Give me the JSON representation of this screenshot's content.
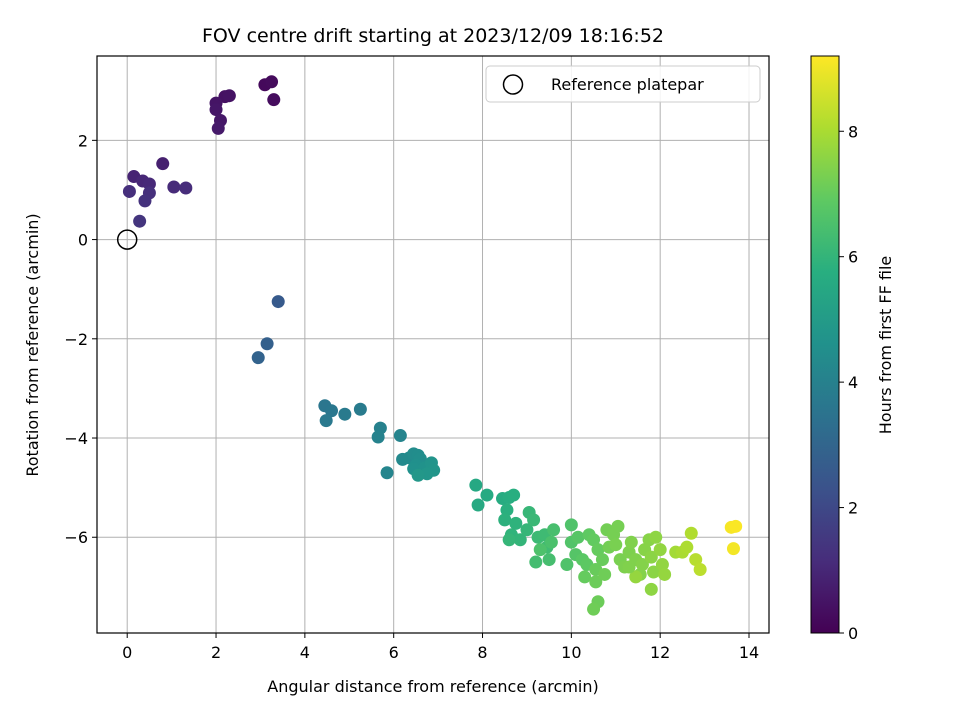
{
  "chart_data": {
    "type": "scatter",
    "title": "FOV centre drift starting at 2023/12/09 18:16:52",
    "xlabel": "Angular distance from reference (arcmin)",
    "ylabel": "Rotation from reference (arcmin)",
    "xlim": [
      -0.68,
      14.45
    ],
    "ylim": [
      -7.93,
      3.7
    ],
    "x_ticks": [
      0,
      2,
      4,
      6,
      8,
      10,
      12,
      14
    ],
    "y_ticks": [
      2,
      0,
      -2,
      -4,
      -6
    ],
    "grid": true,
    "legend": {
      "position": "top-right",
      "entries": [
        {
          "label": "Reference platepar",
          "marker": "open-circle"
        }
      ]
    },
    "reference_point": {
      "x": 0,
      "y": 0
    },
    "colorbar": {
      "label": "Hours from first FF file",
      "colormap": "viridis",
      "range": [
        0,
        9.2
      ],
      "ticks": [
        0,
        2,
        4,
        6,
        8
      ]
    },
    "points": [
      [
        3.1,
        3.12,
        0.2
      ],
      [
        3.25,
        3.18,
        0.25
      ],
      [
        3.3,
        2.82,
        0.3
      ],
      [
        2.2,
        2.88,
        0.4
      ],
      [
        2.3,
        2.9,
        0.45
      ],
      [
        2.0,
        2.75,
        0.5
      ],
      [
        2.0,
        2.62,
        0.55
      ],
      [
        2.1,
        2.4,
        0.6
      ],
      [
        2.05,
        2.24,
        0.65
      ],
      [
        0.8,
        1.53,
        0.8
      ],
      [
        0.15,
        1.27,
        0.9
      ],
      [
        0.35,
        1.18,
        1.0
      ],
      [
        0.5,
        1.12,
        1.05
      ],
      [
        1.05,
        1.06,
        1.1
      ],
      [
        1.32,
        1.04,
        1.15
      ],
      [
        0.05,
        0.97,
        1.2
      ],
      [
        0.5,
        0.94,
        1.25
      ],
      [
        0.4,
        0.78,
        1.3
      ],
      [
        0.28,
        0.37,
        1.4
      ],
      [
        3.4,
        -1.25,
        2.6
      ],
      [
        3.15,
        -2.1,
        2.8
      ],
      [
        2.95,
        -2.38,
        2.9
      ],
      [
        4.45,
        -3.35,
        3.6
      ],
      [
        4.6,
        -3.45,
        3.65
      ],
      [
        4.48,
        -3.65,
        3.7
      ],
      [
        4.9,
        -3.52,
        3.75
      ],
      [
        5.25,
        -3.42,
        3.8
      ],
      [
        5.7,
        -3.8,
        4.0
      ],
      [
        5.65,
        -3.98,
        4.05
      ],
      [
        6.15,
        -3.95,
        4.1
      ],
      [
        5.85,
        -4.7,
        4.15
      ],
      [
        6.2,
        -4.43,
        4.3
      ],
      [
        6.35,
        -4.4,
        4.35
      ],
      [
        6.45,
        -4.32,
        4.4
      ],
      [
        6.55,
        -4.35,
        4.45
      ],
      [
        6.6,
        -4.42,
        4.5
      ],
      [
        6.5,
        -4.55,
        4.55
      ],
      [
        6.45,
        -4.62,
        4.6
      ],
      [
        6.7,
        -4.6,
        4.65
      ],
      [
        6.85,
        -4.5,
        4.7
      ],
      [
        6.9,
        -4.65,
        4.75
      ],
      [
        6.75,
        -4.72,
        4.8
      ],
      [
        6.55,
        -4.75,
        4.85
      ],
      [
        7.85,
        -4.95,
        5.5
      ],
      [
        7.9,
        -5.35,
        5.55
      ],
      [
        8.1,
        -5.15,
        5.6
      ],
      [
        8.45,
        -5.22,
        5.65
      ],
      [
        8.6,
        -5.2,
        5.7
      ],
      [
        8.7,
        -5.15,
        5.75
      ],
      [
        8.55,
        -5.45,
        5.8
      ],
      [
        8.5,
        -5.65,
        5.85
      ],
      [
        8.75,
        -5.72,
        5.9
      ],
      [
        8.65,
        -5.95,
        5.95
      ],
      [
        8.85,
        -6.05,
        6.0
      ],
      [
        9.0,
        -5.85,
        6.05
      ],
      [
        9.05,
        -5.5,
        6.1
      ],
      [
        9.15,
        -5.65,
        6.15
      ],
      [
        9.25,
        -6.0,
        6.2
      ],
      [
        9.4,
        -5.95,
        6.25
      ],
      [
        9.45,
        -6.2,
        6.3
      ],
      [
        9.2,
        -6.5,
        6.35
      ],
      [
        9.5,
        -6.45,
        6.4
      ],
      [
        9.6,
        -5.85,
        6.45
      ],
      [
        9.55,
        -6.1,
        6.5
      ],
      [
        9.3,
        -6.25,
        6.55
      ],
      [
        8.6,
        -6.05,
        6.05
      ],
      [
        10.0,
        -5.75,
        6.6
      ],
      [
        10.0,
        -6.1,
        6.65
      ],
      [
        10.1,
        -6.35,
        6.7
      ],
      [
        10.15,
        -6.0,
        6.75
      ],
      [
        10.25,
        -6.45,
        6.8
      ],
      [
        10.35,
        -6.55,
        6.85
      ],
      [
        10.4,
        -5.95,
        6.9
      ],
      [
        10.5,
        -6.05,
        6.95
      ],
      [
        10.6,
        -6.25,
        7.0
      ],
      [
        10.3,
        -6.8,
        7.0
      ],
      [
        10.55,
        -6.65,
        7.05
      ],
      [
        10.7,
        -6.45,
        7.05
      ],
      [
        9.9,
        -6.55,
        6.6
      ],
      [
        10.55,
        -6.9,
        7.1
      ],
      [
        10.6,
        -7.3,
        7.1
      ],
      [
        10.5,
        -7.45,
        7.15
      ],
      [
        10.75,
        -6.75,
        7.15
      ],
      [
        10.85,
        -6.2,
        7.2
      ],
      [
        10.8,
        -5.85,
        7.2
      ],
      [
        10.95,
        -5.95,
        7.25
      ],
      [
        11.05,
        -5.78,
        7.25
      ],
      [
        11.0,
        -6.15,
        7.3
      ],
      [
        11.1,
        -6.45,
        7.3
      ],
      [
        11.2,
        -6.6,
        7.35
      ],
      [
        11.3,
        -6.3,
        7.35
      ],
      [
        11.35,
        -6.1,
        7.4
      ],
      [
        11.45,
        -6.45,
        7.4
      ],
      [
        11.55,
        -6.75,
        7.45
      ],
      [
        11.6,
        -6.55,
        7.45
      ],
      [
        11.65,
        -6.25,
        7.5
      ],
      [
        11.75,
        -6.05,
        7.5
      ],
      [
        11.8,
        -6.4,
        7.55
      ],
      [
        11.85,
        -6.7,
        7.55
      ],
      [
        11.8,
        -7.05,
        7.6
      ],
      [
        11.9,
        -6.0,
        7.6
      ],
      [
        12.0,
        -6.25,
        7.65
      ],
      [
        12.05,
        -6.55,
        7.65
      ],
      [
        12.1,
        -6.75,
        7.7
      ],
      [
        11.45,
        -6.8,
        7.7
      ],
      [
        11.3,
        -6.6,
        7.4
      ],
      [
        12.35,
        -6.3,
        7.9
      ],
      [
        12.5,
        -6.3,
        8.0
      ],
      [
        12.6,
        -6.2,
        8.05
      ],
      [
        12.7,
        -5.92,
        8.1
      ],
      [
        12.8,
        -6.45,
        8.2
      ],
      [
        12.9,
        -6.65,
        8.25
      ],
      [
        13.6,
        -5.8,
        9.1
      ],
      [
        13.7,
        -5.78,
        9.15
      ],
      [
        13.65,
        -6.23,
        9.05
      ]
    ]
  }
}
